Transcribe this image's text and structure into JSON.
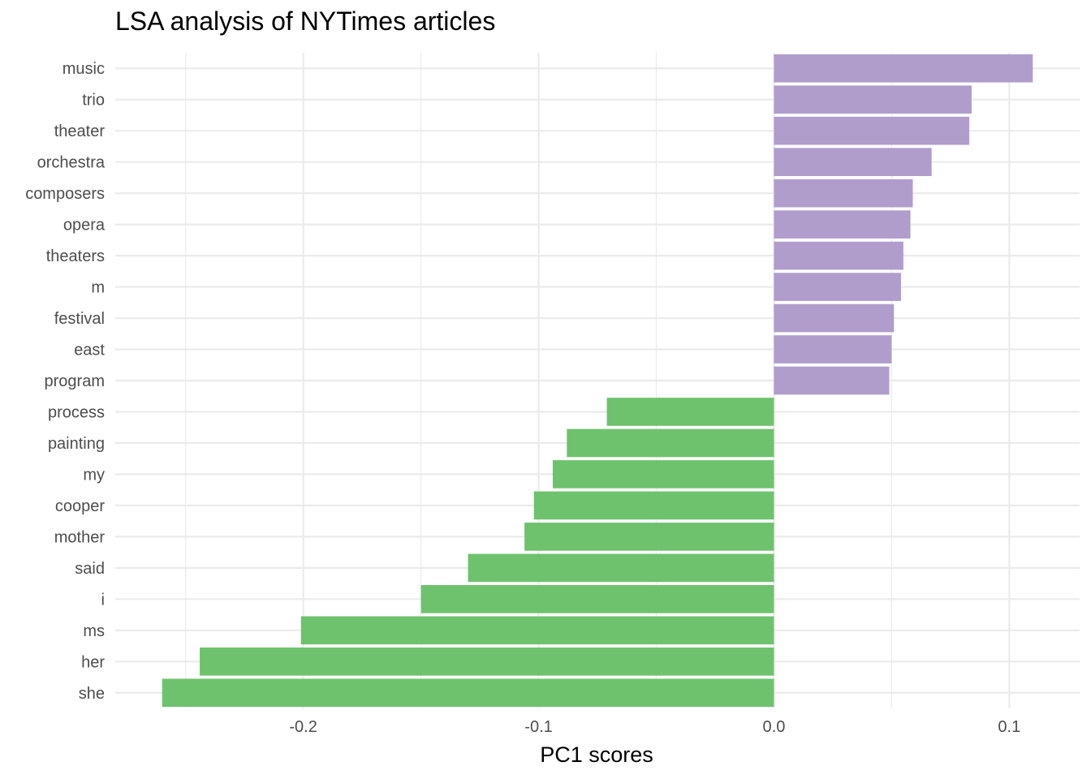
{
  "chart_data": {
    "type": "bar",
    "orientation": "horizontal",
    "title": "LSA analysis of NYTimes articles",
    "xlabel": "PC1 scores",
    "ylabel": "",
    "categories": [
      "music",
      "trio",
      "theater",
      "orchestra",
      "composers",
      "opera",
      "theaters",
      "m",
      "festival",
      "east",
      "program",
      "process",
      "painting",
      "my",
      "cooper",
      "mother",
      "said",
      "i",
      "ms",
      "her",
      "she"
    ],
    "values": [
      0.11,
      0.084,
      0.083,
      0.067,
      0.059,
      0.058,
      0.055,
      0.054,
      0.051,
      0.05,
      0.049,
      -0.071,
      -0.088,
      -0.094,
      -0.102,
      -0.106,
      -0.13,
      -0.15,
      -0.201,
      -0.244,
      -0.26
    ],
    "xlim": [
      -0.2799,
      0.1299
    ],
    "xticks": [
      -0.2,
      -0.1,
      0.0,
      0.1
    ],
    "xtick_labels": [
      "-0.2",
      "-0.1",
      "0.0",
      "0.1"
    ],
    "grid": true,
    "legend": "none",
    "colors": {
      "positive": "#B09DCC",
      "negative": "#6EC26D",
      "grid": "#EBEBEB",
      "tick_text": "#4D4D4D"
    }
  }
}
